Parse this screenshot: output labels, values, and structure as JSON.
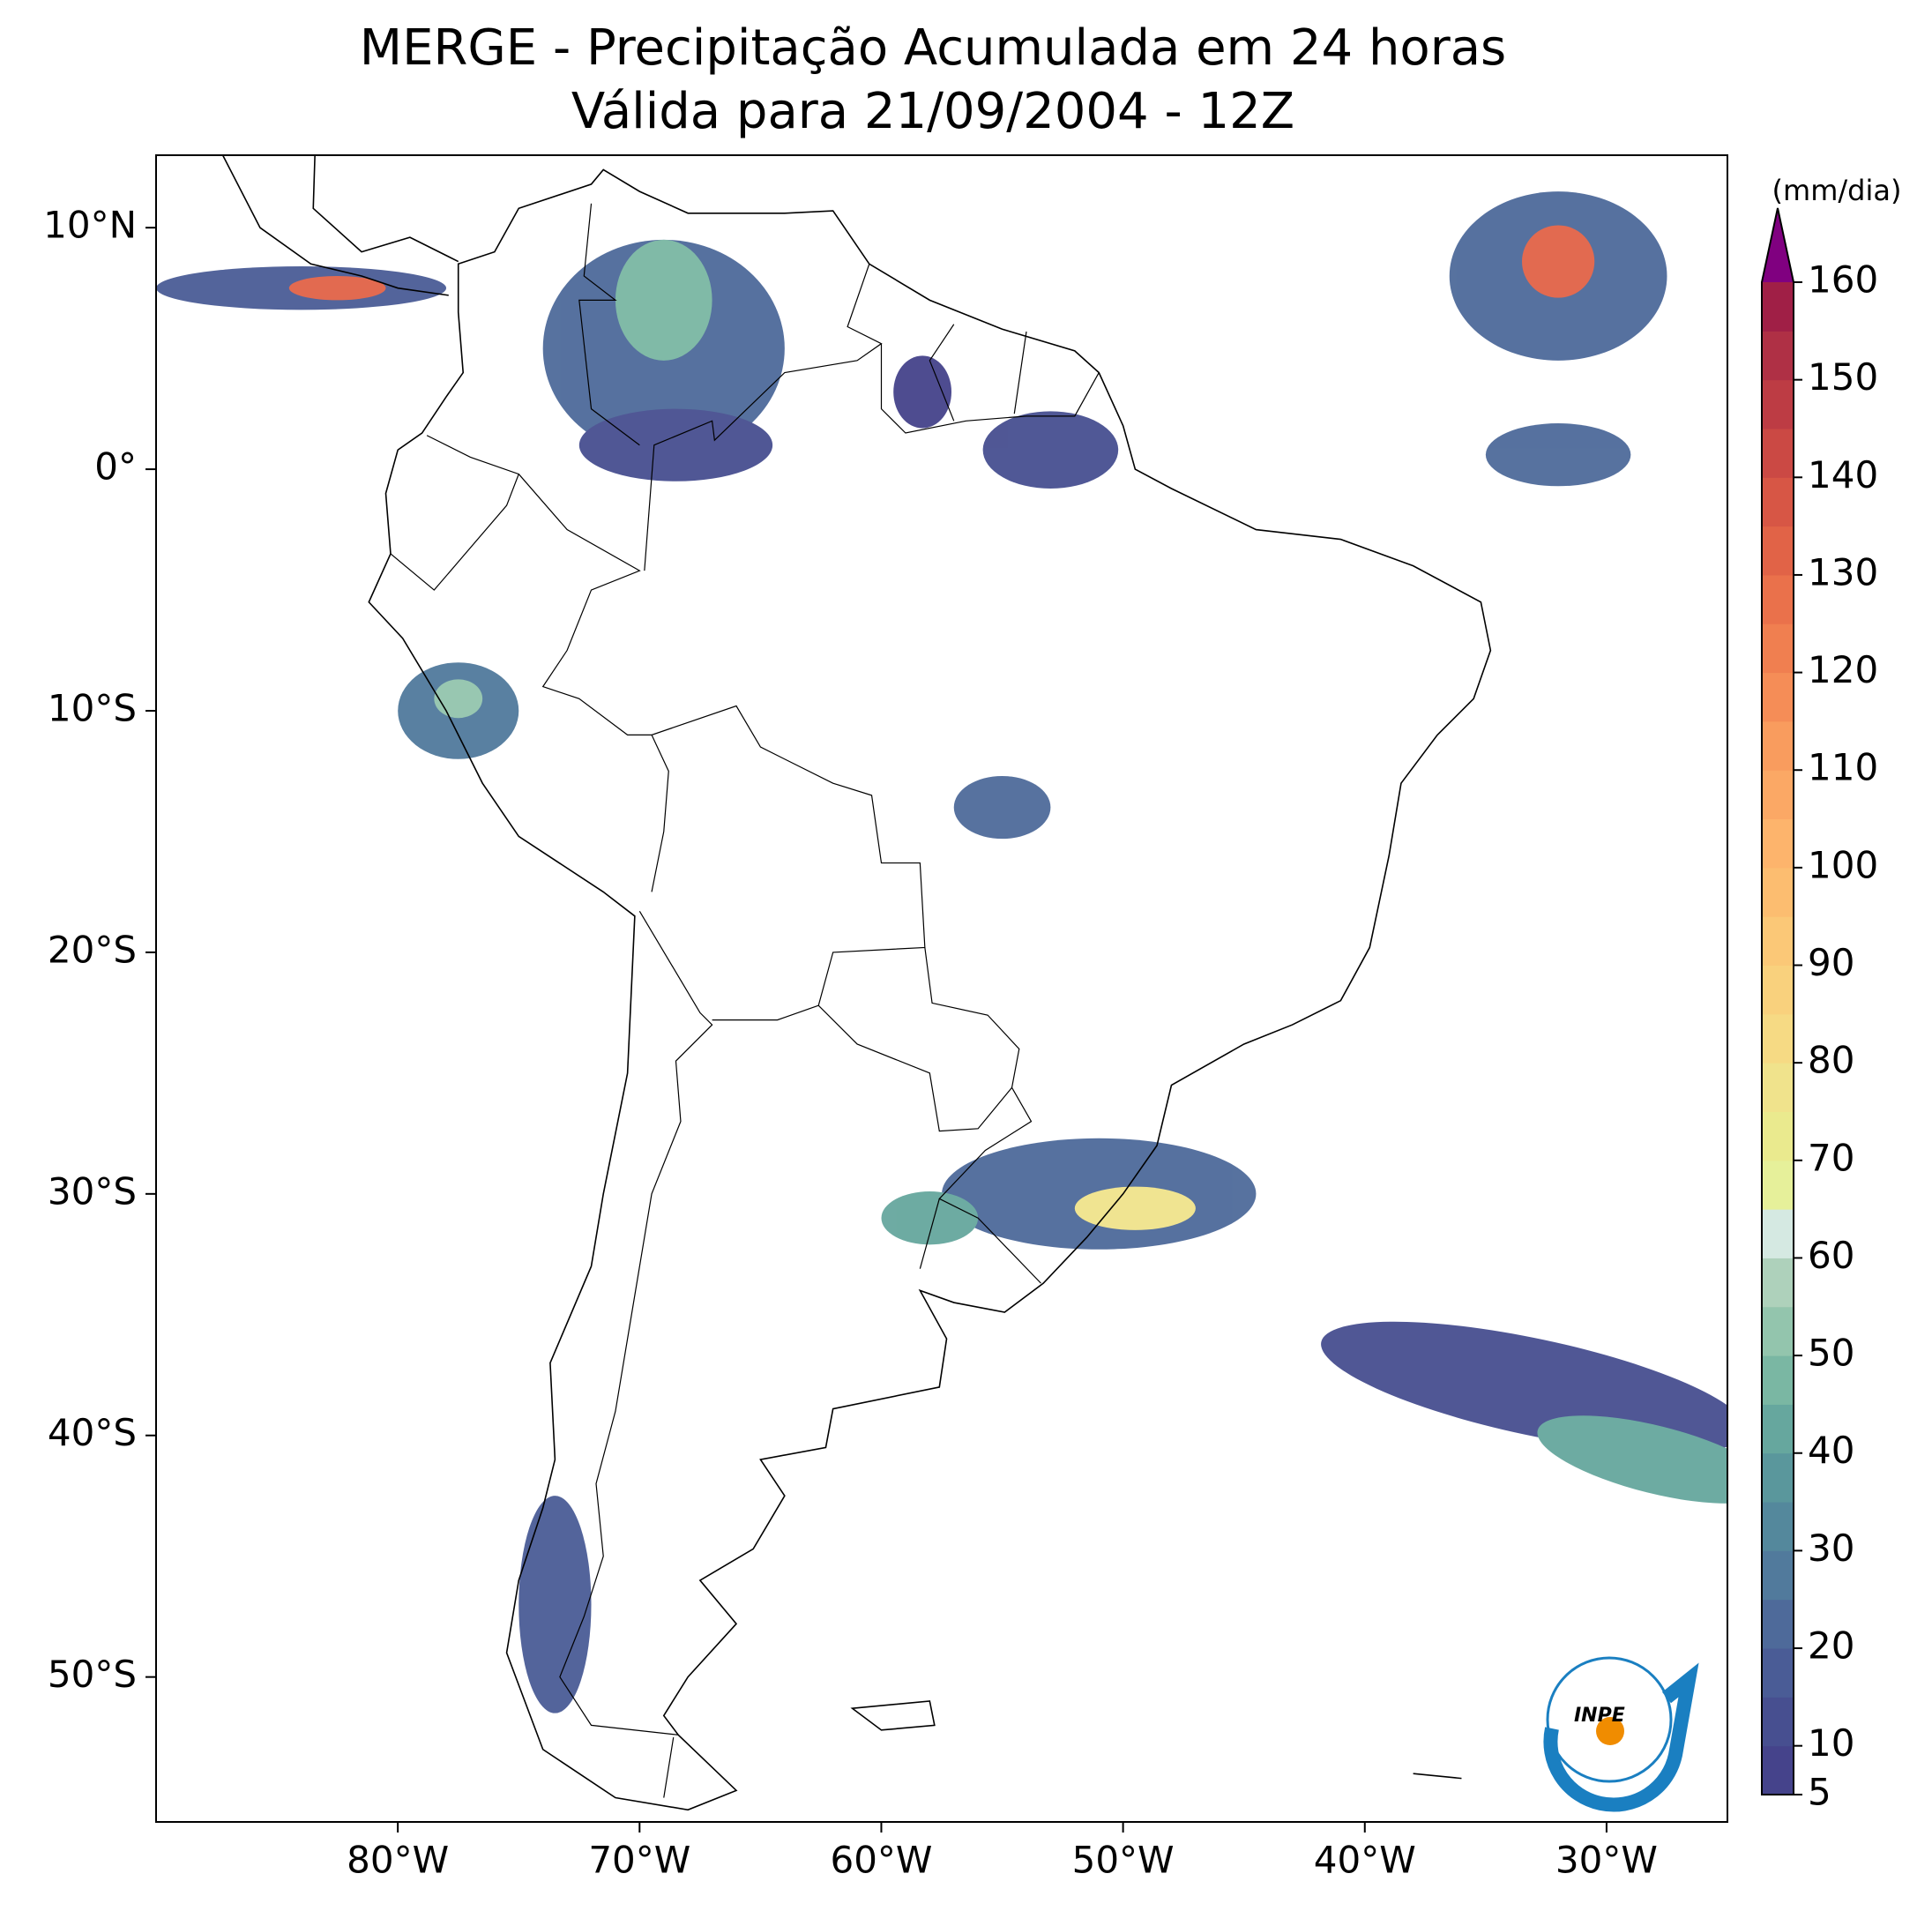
{
  "title": "MERGE - Precipitação Acumulada em 24 horas",
  "subtitle": "Válida para 21/09/2004 - 12Z",
  "map": {
    "xlim": [
      -90,
      -25
    ],
    "ylim": [
      -56,
      13
    ],
    "xticks": [
      {
        "value": -80,
        "label": "80°W"
      },
      {
        "value": -70,
        "label": "70°W"
      },
      {
        "value": -60,
        "label": "60°W"
      },
      {
        "value": -50,
        "label": "50°W"
      },
      {
        "value": -40,
        "label": "40°W"
      },
      {
        "value": -30,
        "label": "30°W"
      }
    ],
    "yticks": [
      {
        "value": 10,
        "label": "10°N"
      },
      {
        "value": 0,
        "label": "0°"
      },
      {
        "value": -10,
        "label": "10°S"
      },
      {
        "value": -20,
        "label": "20°S"
      },
      {
        "value": -30,
        "label": "30°S"
      },
      {
        "value": -40,
        "label": "40°S"
      },
      {
        "value": -50,
        "label": "50°S"
      }
    ]
  },
  "colorbar": {
    "label": "(mm/dia)",
    "lim": [
      5,
      160
    ],
    "ticks": [
      5,
      10,
      20,
      30,
      40,
      50,
      60,
      70,
      80,
      90,
      100,
      110,
      120,
      130,
      140,
      150,
      160
    ],
    "colors": [
      "#45438b",
      "#474f90",
      "#4a5c96",
      "#4e6a9a",
      "#517a9c",
      "#54889c",
      "#5a979c",
      "#66a79e",
      "#7ab7a3",
      "#93c5ad",
      "#aed1bb",
      "#d5e9e2",
      "#e6f09a",
      "#eaea8e",
      "#f0e38c",
      "#f6da84",
      "#f9d17d",
      "#fbc877",
      "#fcbd70",
      "#fdb46c",
      "#fba865",
      "#f99c5e",
      "#f58d57",
      "#f07f50",
      "#ea714b",
      "#e16347",
      "#d75645",
      "#cb4944",
      "#bd3c44",
      "#af3045",
      "#a01f46"
    ],
    "extend_color": "#800080"
  },
  "logo": {
    "text": "INPE"
  }
}
